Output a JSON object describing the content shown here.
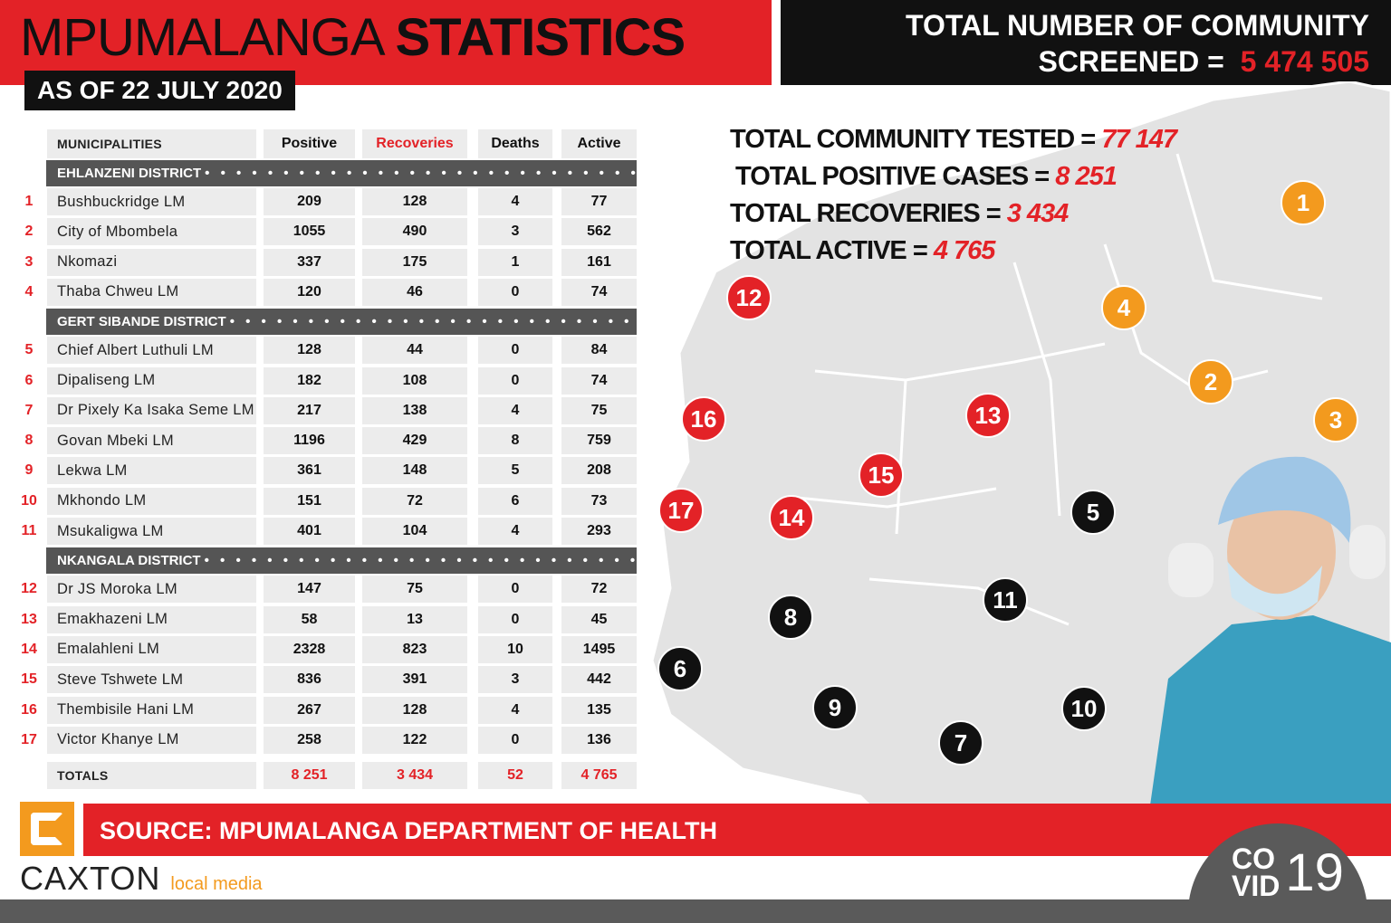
{
  "header": {
    "title_light": "MPUMALANGA",
    "title_bold": "STATISTICS",
    "date": "AS OF 22 JULY 2020"
  },
  "screened": {
    "line1": "TOTAL NUMBER OF COMMUNITY",
    "line2": "SCREENED =",
    "value": "5 474 505"
  },
  "summary": [
    {
      "label": "TOTAL COMMUNITY TESTED =",
      "value": "77 147"
    },
    {
      "label": "TOTAL POSITIVE CASES =",
      "value": "8 251"
    },
    {
      "label": "TOTAL RECOVERIES =",
      "value": "3 434"
    },
    {
      "label": "TOTAL ACTIVE =",
      "value": "4 765"
    }
  ],
  "table": {
    "headers": [
      "MUNICIPALITIES",
      "Positive",
      "Recoveries",
      "Deaths",
      "Active"
    ],
    "districts": [
      {
        "name": "EHLANZENI DISTRICT",
        "rows": [
          [
            "1",
            "Bushbuckridge LM",
            "209",
            "128",
            "4",
            "77"
          ],
          [
            "2",
            "City of Mbombela",
            "1055",
            "490",
            "3",
            "562"
          ],
          [
            "3",
            "Nkomazi",
            "337",
            "175",
            "1",
            "161"
          ],
          [
            "4",
            "Thaba Chweu LM",
            "120",
            "46",
            "0",
            "74"
          ]
        ]
      },
      {
        "name": "GERT SIBANDE DISTRICT",
        "rows": [
          [
            "5",
            "Chief Albert Luthuli LM",
            "128",
            "44",
            "0",
            "84"
          ],
          [
            "6",
            "Dipaliseng LM",
            "182",
            "108",
            "0",
            "74"
          ],
          [
            "7",
            "Dr Pixely Ka Isaka Seme LM",
            "217",
            "138",
            "4",
            "75"
          ],
          [
            "8",
            "Govan Mbeki LM",
            "1196",
            "429",
            "8",
            "759"
          ],
          [
            "9",
            "Lekwa LM",
            "361",
            "148",
            "5",
            "208"
          ],
          [
            "10",
            "Mkhondo LM",
            "151",
            "72",
            "6",
            "73"
          ],
          [
            "11",
            "Msukaligwa LM",
            "401",
            "104",
            "4",
            "293"
          ]
        ]
      },
      {
        "name": "NKANGALA DISTRICT",
        "rows": [
          [
            "12",
            "Dr JS Moroka LM",
            "147",
            "75",
            "0",
            "72"
          ],
          [
            "13",
            "Emakhazeni LM",
            "58",
            "13",
            "0",
            "45"
          ],
          [
            "14",
            "Emalahleni LM",
            "2328",
            "823",
            "10",
            "1495"
          ],
          [
            "15",
            "Steve Tshwete LM",
            "836",
            "391",
            "3",
            "442"
          ],
          [
            "16",
            "Thembisile Hani LM",
            "267",
            "128",
            "4",
            "135"
          ],
          [
            "17",
            "Victor Khanye LM",
            "258",
            "122",
            "0",
            "136"
          ]
        ]
      }
    ],
    "totals": {
      "label": "TOTALS",
      "values": [
        "8 251",
        "3 434",
        "52",
        "4 765"
      ]
    }
  },
  "map_badges": [
    {
      "label": "1",
      "color": "#f39a1e"
    },
    {
      "label": "2",
      "color": "#f39a1e"
    },
    {
      "label": "3",
      "color": "#f39a1e"
    },
    {
      "label": "4",
      "color": "#f39a1e"
    },
    {
      "label": "5",
      "color": "#111111"
    },
    {
      "label": "6",
      "color": "#111111"
    },
    {
      "label": "7",
      "color": "#111111"
    },
    {
      "label": "8",
      "color": "#111111"
    },
    {
      "label": "9",
      "color": "#111111"
    },
    {
      "label": "10",
      "color": "#111111"
    },
    {
      "label": "11",
      "color": "#111111"
    },
    {
      "label": "12",
      "color": "#e32227"
    },
    {
      "label": "13",
      "color": "#e32227"
    },
    {
      "label": "14",
      "color": "#e32227"
    },
    {
      "label": "15",
      "color": "#e32227"
    },
    {
      "label": "16",
      "color": "#e32227"
    },
    {
      "label": "17",
      "color": "#e32227"
    }
  ],
  "footer": {
    "source": "SOURCE: MPUMALANGA DEPARTMENT OF HEALTH",
    "brand": "CAXTON",
    "brand_sub": "local media",
    "covid_top": "CO",
    "covid_bottom": "VID",
    "covid_num": "19"
  },
  "colors": {
    "accent": "#e32227",
    "dark": "#111111",
    "orange": "#f39a1e"
  }
}
